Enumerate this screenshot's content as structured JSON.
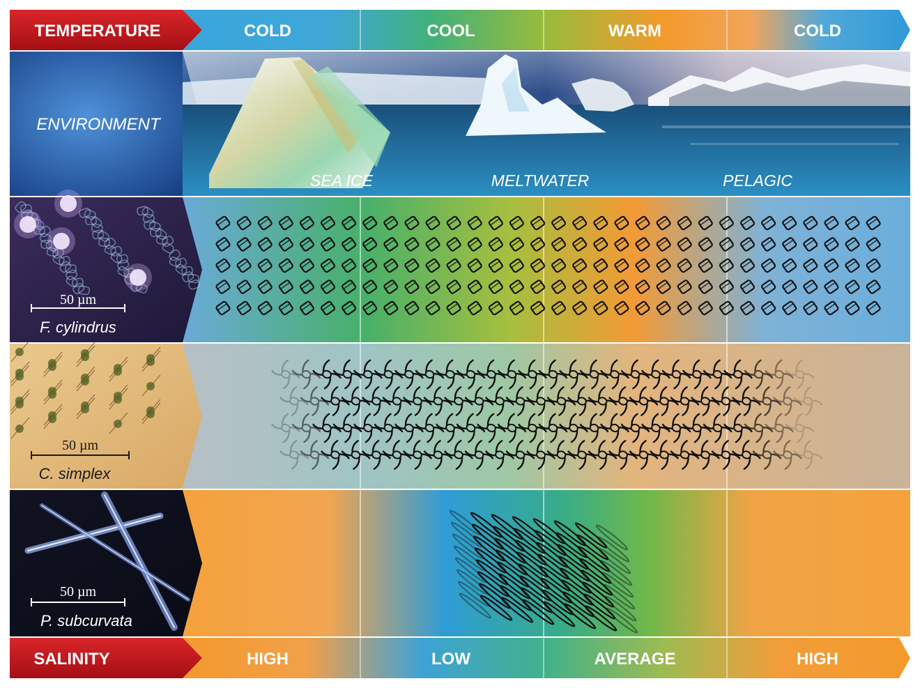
{
  "header": {
    "row_label": "TEMPERATURE",
    "columns": [
      "COLD",
      "COOL",
      "WARM",
      "COLD"
    ]
  },
  "environment": {
    "row_label": "ENVIRONMENT",
    "scene_labels": [
      "SEA ICE",
      "MELTWATER",
      "PELAGIC"
    ]
  },
  "species": [
    {
      "name": "F. cylindrus",
      "scale_bar": "50 µm",
      "icon": "square-cell-chain-icon"
    },
    {
      "name": "C. simplex",
      "scale_bar": "50 µm",
      "icon": "spined-cell-icon"
    },
    {
      "name": "P. subcurvata",
      "scale_bar": "50 µm",
      "icon": "needle-cell-icon"
    }
  ],
  "footer": {
    "row_label": "SALINITY",
    "columns": [
      "HIGH",
      "LOW",
      "AVERAGE",
      "HIGH"
    ]
  },
  "colors": {
    "label_red": "#c0161c",
    "cold_blue": "#3d9bd6",
    "cool_green": "#3fb36b",
    "warm_orange": "#f29a2e",
    "low_salinity_blue": "#2f97d4"
  }
}
